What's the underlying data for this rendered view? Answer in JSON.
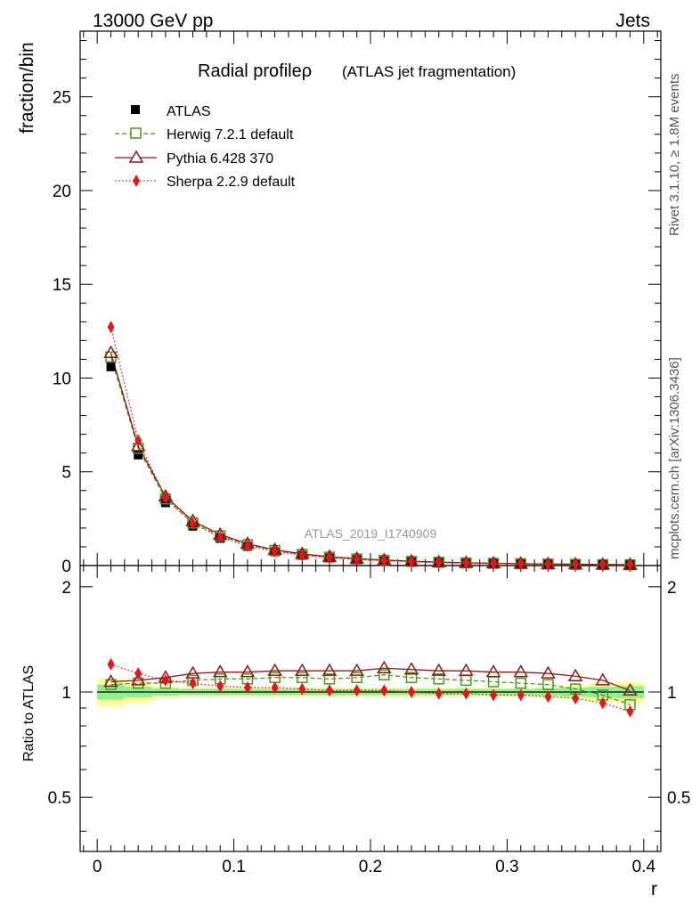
{
  "header": {
    "left": "13000 GeV pp",
    "right": "Jets"
  },
  "side": {
    "rivet": "Rivet 3.1.10, ≥ 1.8M events",
    "mcplots": "mcplots.cern.ch [arXiv:1306.3436]"
  },
  "chart_data": {
    "type": "line",
    "title": "Radial profileρ",
    "subtitle": "(ATLAS jet fragmentation)",
    "watermark": "ATLAS_2019_I1740909",
    "xlabel": "r",
    "ylabel": "fraction/bin",
    "ratio_ylabel": "Ratio to ATLAS",
    "xlim": [
      -0.0125,
      0.4125
    ],
    "ylim": [
      0,
      28.5
    ],
    "ratio_ylim": [
      0.35,
      2.3
    ],
    "x_ticks": [
      0,
      0.1,
      0.2,
      0.3,
      0.4
    ],
    "x_tick_labels": [
      "0",
      "0.1",
      "0.2",
      "0.3",
      "0.4"
    ],
    "y_ticks": [
      0,
      5,
      10,
      15,
      20,
      25
    ],
    "y_tick_labels": [
      "0",
      "5",
      "10",
      "15",
      "20",
      "25"
    ],
    "ratio_ticks": [
      0.5,
      1,
      2
    ],
    "ratio_tick_labels": [
      "0.5",
      "1",
      "2"
    ],
    "x": [
      0.01,
      0.03,
      0.05,
      0.07,
      0.09,
      0.11,
      0.13,
      0.15,
      0.17,
      0.19,
      0.21,
      0.23,
      0.25,
      0.27,
      0.29,
      0.31,
      0.33,
      0.35,
      0.37,
      0.39
    ],
    "bin_edges": [
      0,
      0.02,
      0.04,
      0.06,
      0.08,
      0.1,
      0.12,
      0.14,
      0.16,
      0.18,
      0.2,
      0.22,
      0.24,
      0.26,
      0.28,
      0.3,
      0.32,
      0.34,
      0.36,
      0.38,
      0.4
    ],
    "atlas": [
      10.6,
      5.9,
      3.35,
      2.1,
      1.45,
      1.02,
      0.73,
      0.54,
      0.41,
      0.32,
      0.25,
      0.2,
      0.16,
      0.13,
      0.11,
      0.09,
      0.075,
      0.062,
      0.052,
      0.044
    ],
    "band_inner": [
      0.05,
      0.035,
      0.025,
      0.02,
      0.02,
      0.02,
      0.02,
      0.02,
      0.02,
      0.02,
      0.02,
      0.02,
      0.02,
      0.02,
      0.02,
      0.02,
      0.025,
      0.03,
      0.035,
      0.04
    ],
    "band_outer": [
      0.09,
      0.07,
      0.04,
      0.03,
      0.03,
      0.03,
      0.03,
      0.03,
      0.03,
      0.03,
      0.03,
      0.03,
      0.03,
      0.03,
      0.03,
      0.03,
      0.035,
      0.045,
      0.06,
      0.07
    ],
    "series": [
      {
        "name": "ATLAS",
        "marker": "square-filled",
        "color": "#000000"
      },
      {
        "name": "Herwig 7.2.1 default",
        "marker": "square-open",
        "line": "dashed",
        "color": "#4a9a1c",
        "ratio": [
          1.05,
          1.06,
          1.06,
          1.08,
          1.09,
          1.09,
          1.1,
          1.1,
          1.09,
          1.1,
          1.12,
          1.1,
          1.09,
          1.08,
          1.07,
          1.06,
          1.05,
          1.02,
          0.98,
          0.92
        ]
      },
      {
        "name": "Pythia 6.428 370",
        "marker": "triangle-open",
        "line": "solid",
        "color": "#8b1a1a",
        "ratio": [
          1.07,
          1.08,
          1.1,
          1.13,
          1.14,
          1.14,
          1.15,
          1.15,
          1.15,
          1.15,
          1.17,
          1.16,
          1.15,
          1.15,
          1.14,
          1.14,
          1.13,
          1.11,
          1.08,
          1.01
        ]
      },
      {
        "name": "Sherpa 2.2.9 default",
        "marker": "diamond-filled",
        "line": "dotted",
        "color": "#e8141a",
        "ratio": [
          1.2,
          1.13,
          1.08,
          1.06,
          1.04,
          1.03,
          1.03,
          1.02,
          1.01,
          1.01,
          1.01,
          1.0,
          0.99,
          0.99,
          0.98,
          0.98,
          0.97,
          0.96,
          0.93,
          0.88
        ]
      }
    ]
  }
}
